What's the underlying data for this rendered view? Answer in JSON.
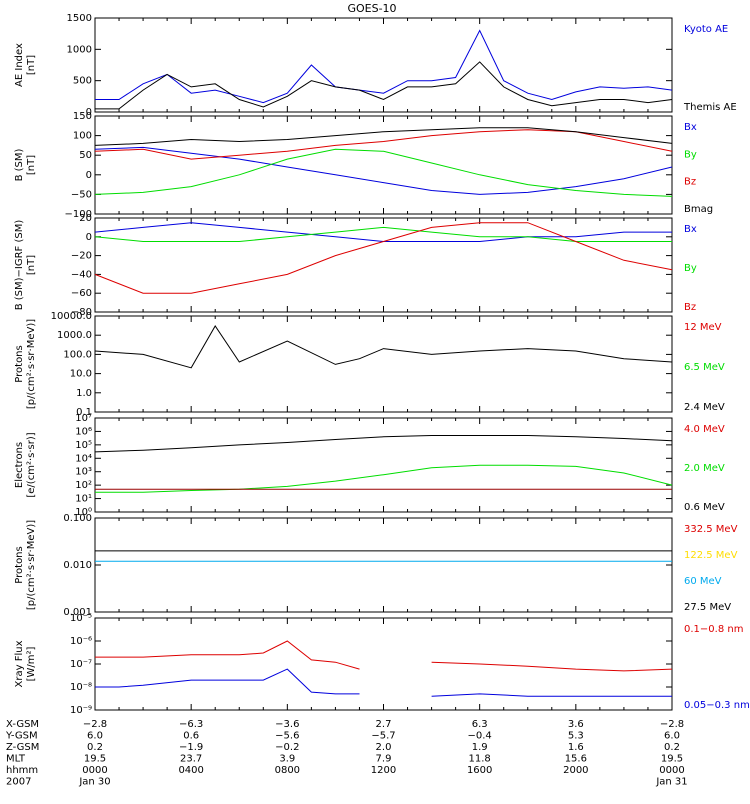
{
  "title": "GOES-10",
  "colors": {
    "black": "#000000",
    "blue": "#0000dd",
    "red": "#dd0000",
    "green": "#00dd00",
    "darkred": "#990000",
    "yellow": "#ffdd00",
    "cyan": "#00aaee"
  },
  "chart_data": [
    {
      "type": "line",
      "panel": "ae",
      "ylabel": [
        "AE Index",
        "[nT]"
      ],
      "ylim": [
        0,
        1500
      ],
      "scale": "linear",
      "ticks": [
        0,
        500,
        1000,
        1500
      ],
      "tick_labels": [
        "0",
        "500",
        "1000",
        "1500"
      ],
      "legend": [
        {
          "name": "Kyoto AE",
          "color": "#0000dd"
        },
        {
          "name": "Themis AE",
          "color": "#000000"
        }
      ],
      "series": [
        {
          "name": "Kyoto AE",
          "color": "#0000dd",
          "x": [
            0,
            1,
            2,
            3,
            4,
            5,
            6,
            7,
            8,
            9,
            10,
            11,
            12,
            13,
            14,
            15,
            16,
            17,
            18,
            19,
            20,
            21,
            22,
            23,
            24
          ],
          "values": [
            200,
            200,
            450,
            600,
            300,
            350,
            250,
            150,
            300,
            750,
            400,
            350,
            300,
            500,
            500,
            550,
            1300,
            500,
            300,
            200,
            320,
            400,
            380,
            400,
            350
          ]
        },
        {
          "name": "Themis AE",
          "color": "#000000",
          "x": [
            0,
            1,
            2,
            3,
            4,
            5,
            6,
            7,
            8,
            9,
            10,
            11,
            12,
            13,
            14,
            15,
            16,
            17,
            18,
            19,
            20,
            21,
            22,
            23,
            24
          ],
          "values": [
            50,
            50,
            350,
            600,
            400,
            450,
            200,
            80,
            250,
            500,
            400,
            350,
            200,
            400,
            400,
            450,
            800,
            400,
            200,
            100,
            150,
            200,
            200,
            150,
            200
          ]
        }
      ]
    },
    {
      "type": "line",
      "panel": "bsm",
      "ylabel": [
        "B (SM)",
        "[nT]"
      ],
      "ylim": [
        -100,
        150
      ],
      "scale": "linear",
      "ticks": [
        -100,
        -50,
        0,
        50,
        100,
        150
      ],
      "tick_labels": [
        "−100",
        "−50",
        "0",
        "50",
        "100",
        "150"
      ],
      "legend": [
        {
          "name": "Bx",
          "color": "#0000dd"
        },
        {
          "name": "By",
          "color": "#00dd00"
        },
        {
          "name": "Bz",
          "color": "#dd0000"
        },
        {
          "name": "Bmag",
          "color": "#000000"
        }
      ],
      "series": [
        {
          "name": "Bx",
          "color": "#0000dd",
          "x": [
            0,
            2,
            4,
            6,
            8,
            10,
            12,
            14,
            16,
            18,
            20,
            22,
            24
          ],
          "values": [
            65,
            70,
            55,
            40,
            20,
            0,
            -20,
            -40,
            -50,
            -45,
            -30,
            -10,
            20
          ]
        },
        {
          "name": "By",
          "color": "#00dd00",
          "x": [
            0,
            2,
            4,
            6,
            8,
            10,
            12,
            14,
            16,
            18,
            20,
            22,
            24
          ],
          "values": [
            -50,
            -45,
            -30,
            0,
            40,
            65,
            60,
            30,
            0,
            -25,
            -40,
            -50,
            -55
          ]
        },
        {
          "name": "Bz",
          "color": "#dd0000",
          "x": [
            0,
            2,
            4,
            6,
            8,
            10,
            12,
            14,
            16,
            18,
            20,
            22,
            24
          ],
          "values": [
            60,
            65,
            40,
            50,
            60,
            75,
            85,
            100,
            110,
            115,
            110,
            85,
            60
          ]
        },
        {
          "name": "Bmag",
          "color": "#000000",
          "x": [
            0,
            2,
            4,
            6,
            8,
            10,
            12,
            14,
            16,
            18,
            20,
            22,
            24
          ],
          "values": [
            75,
            80,
            90,
            85,
            90,
            100,
            110,
            115,
            120,
            120,
            110,
            95,
            80
          ]
        }
      ]
    },
    {
      "type": "line",
      "panel": "bdiff",
      "ylabel": [
        "B (SM)−IGRF (SM)",
        "[nT]"
      ],
      "ylim": [
        -80,
        20
      ],
      "scale": "linear",
      "ticks": [
        -80,
        -60,
        -40,
        -20,
        0,
        20
      ],
      "tick_labels": [
        "−80",
        "−60",
        "−40",
        "−20",
        "0",
        "20"
      ],
      "legend": [
        {
          "name": "Bx",
          "color": "#0000dd"
        },
        {
          "name": "By",
          "color": "#00dd00"
        },
        {
          "name": "Bz",
          "color": "#dd0000"
        }
      ],
      "series": [
        {
          "name": "Bx",
          "color": "#0000dd",
          "x": [
            0,
            2,
            4,
            6,
            8,
            10,
            12,
            14,
            16,
            18,
            20,
            22,
            24
          ],
          "values": [
            5,
            10,
            15,
            10,
            5,
            0,
            -5,
            -5,
            -5,
            0,
            0,
            5,
            5
          ]
        },
        {
          "name": "By",
          "color": "#00dd00",
          "x": [
            0,
            2,
            4,
            6,
            8,
            10,
            12,
            14,
            16,
            18,
            20,
            22,
            24
          ],
          "values": [
            0,
            -5,
            -5,
            -5,
            0,
            5,
            10,
            5,
            0,
            0,
            -5,
            -5,
            -5
          ]
        },
        {
          "name": "Bz",
          "color": "#dd0000",
          "x": [
            0,
            2,
            4,
            6,
            8,
            10,
            12,
            14,
            16,
            18,
            20,
            22,
            24
          ],
          "values": [
            -40,
            -60,
            -60,
            -50,
            -40,
            -20,
            -5,
            10,
            15,
            15,
            -5,
            -25,
            -35
          ]
        }
      ]
    },
    {
      "type": "line",
      "panel": "protons1",
      "ylabel": [
        "Protons",
        "[p/(cm²·s·sr·MeV)]"
      ],
      "ylim": [
        0.1,
        10000
      ],
      "scale": "log",
      "ticks": [
        0.1,
        1,
        10,
        100,
        1000,
        10000
      ],
      "tick_labels": [
        "0.1",
        "1.0",
        "10.0",
        "100.0",
        "1000.0",
        "10000.0"
      ],
      "legend": [
        {
          "name": "12 MeV",
          "color": "#dd0000"
        },
        {
          "name": "6.5 MeV",
          "color": "#00dd00"
        },
        {
          "name": "2.4 MeV",
          "color": "#000000"
        }
      ],
      "series": [
        {
          "name": "2.4 MeV",
          "color": "#000000",
          "x": [
            0,
            2,
            4,
            5,
            6,
            8,
            10,
            11,
            12,
            14,
            16,
            18,
            20,
            22,
            24
          ],
          "values": [
            150,
            100,
            20,
            3000,
            40,
            500,
            30,
            60,
            200,
            100,
            150,
            200,
            150,
            60,
            40
          ]
        }
      ]
    },
    {
      "type": "line",
      "panel": "electrons",
      "ylabel": [
        "Electrons",
        "[e/(cm²·s·sr)]"
      ],
      "ylim": [
        1,
        10000000
      ],
      "scale": "log",
      "ticks": [
        1,
        10,
        100,
        1000,
        10000,
        100000,
        1000000,
        10000000
      ],
      "tick_labels": [
        "10⁰",
        "10¹",
        "10²",
        "10³",
        "10⁴",
        "10⁵",
        "10⁶",
        "10⁷"
      ],
      "legend": [
        {
          "name": "4.0 MeV",
          "color": "#dd0000"
        },
        {
          "name": "2.0 MeV",
          "color": "#00dd00"
        },
        {
          "name": "0.6 MeV",
          "color": "#000000"
        }
      ],
      "series": [
        {
          "name": "0.6 MeV",
          "color": "#000000",
          "x": [
            0,
            2,
            4,
            6,
            8,
            10,
            12,
            14,
            16,
            18,
            20,
            22,
            24
          ],
          "values": [
            30000,
            40000,
            60000,
            100000,
            150000,
            250000,
            400000,
            500000,
            500000,
            500000,
            400000,
            300000,
            200000
          ]
        },
        {
          "name": "2.0 MeV",
          "color": "#00dd00",
          "x": [
            0,
            2,
            4,
            6,
            8,
            10,
            12,
            14,
            16,
            18,
            20,
            22,
            24
          ],
          "values": [
            30,
            30,
            40,
            50,
            80,
            200,
            600,
            2000,
            3000,
            3000,
            2500,
            800,
            100
          ]
        },
        {
          "name": "4.0 MeV",
          "color": "#990000",
          "x": [
            0,
            2,
            4,
            6,
            8,
            10,
            12,
            14,
            16,
            18,
            20,
            22,
            24
          ],
          "values": [
            50,
            50,
            50,
            50,
            50,
            50,
            50,
            50,
            50,
            50,
            50,
            50,
            50
          ]
        }
      ]
    },
    {
      "type": "line",
      "panel": "protons2",
      "ylabel": [
        "Protons",
        "[p/(cm²·s·sr·MeV)]"
      ],
      "ylim": [
        0.001,
        0.1
      ],
      "scale": "log",
      "ticks": [
        0.001,
        0.01,
        0.1
      ],
      "tick_labels": [
        "0.001",
        "0.010",
        "0.100"
      ],
      "legend": [
        {
          "name": "332.5 MeV",
          "color": "#dd0000"
        },
        {
          "name": "122.5 MeV",
          "color": "#ffdd00"
        },
        {
          "name": "60 MeV",
          "color": "#00aaee"
        },
        {
          "name": "27.5 MeV",
          "color": "#000000"
        }
      ],
      "series": [
        {
          "name": "27.5 MeV",
          "color": "#000000",
          "x": [
            0,
            24
          ],
          "values": [
            0.02,
            0.02
          ]
        },
        {
          "name": "60 MeV",
          "color": "#00aaee",
          "x": [
            0,
            24
          ],
          "values": [
            0.012,
            0.012
          ]
        }
      ]
    },
    {
      "type": "line",
      "panel": "xray",
      "ylabel": [
        "Xray Flux",
        "[W/m²]"
      ],
      "ylim": [
        1e-09,
        1e-05
      ],
      "scale": "log",
      "ticks": [
        1e-09,
        1e-08,
        1e-07,
        1e-06,
        1e-05
      ],
      "tick_labels": [
        "10⁻⁹",
        "10⁻⁸",
        "10⁻⁷",
        "10⁻⁶",
        "10⁻⁵"
      ],
      "legend": [
        {
          "name": "0.1−0.8 nm",
          "color": "#dd0000"
        },
        {
          "name": "0.05−0.3 nm",
          "color": "#0000dd"
        }
      ],
      "series": [
        {
          "name": "0.1−0.8 nm",
          "color": "#dd0000",
          "x": [
            0,
            1,
            2,
            4,
            6,
            7,
            8,
            9,
            10,
            11,
            12,
            14,
            16,
            18,
            20,
            22,
            24
          ],
          "values": [
            2e-07,
            2e-07,
            2e-07,
            2.5e-07,
            2.5e-07,
            3e-07,
            1e-06,
            1.5e-07,
            1.2e-07,
            6e-08,
            null,
            1.2e-07,
            1e-07,
            8e-08,
            6e-08,
            5e-08,
            6e-08
          ]
        },
        {
          "name": "0.05−0.3 nm",
          "color": "#0000dd",
          "x": [
            0,
            1,
            2,
            4,
            6,
            7,
            8,
            9,
            10,
            11,
            12,
            14,
            16,
            18,
            20,
            22,
            24
          ],
          "values": [
            1e-08,
            1e-08,
            1.2e-08,
            2e-08,
            2e-08,
            2e-08,
            6e-08,
            6e-09,
            5e-09,
            5e-09,
            null,
            4e-09,
            5e-09,
            4e-09,
            4e-09,
            4e-09,
            4e-09
          ]
        }
      ]
    }
  ],
  "xaxis": {
    "row_labels": [
      "X-GSM",
      "Y-GSM",
      "Z-GSM",
      "MLT",
      "hhmm",
      "2007"
    ],
    "columns": [
      {
        "values": [
          "−2.8",
          "6.0",
          "0.2",
          "19.5",
          "0000",
          "Jan 30"
        ]
      },
      {
        "values": [
          "−6.3",
          "0.6",
          "−1.9",
          "23.7",
          "0400",
          ""
        ]
      },
      {
        "values": [
          "−3.6",
          "−5.6",
          "−0.2",
          "3.9",
          "0800",
          ""
        ]
      },
      {
        "values": [
          "2.7",
          "−5.7",
          "2.0",
          "7.9",
          "1200",
          ""
        ]
      },
      {
        "values": [
          "6.3",
          "−0.4",
          "1.9",
          "11.8",
          "1600",
          ""
        ]
      },
      {
        "values": [
          "3.6",
          "5.3",
          "1.6",
          "15.6",
          "2000",
          ""
        ]
      },
      {
        "values": [
          "−2.8",
          "6.0",
          "0.2",
          "19.5",
          "0000",
          "Jan 31"
        ]
      }
    ]
  }
}
